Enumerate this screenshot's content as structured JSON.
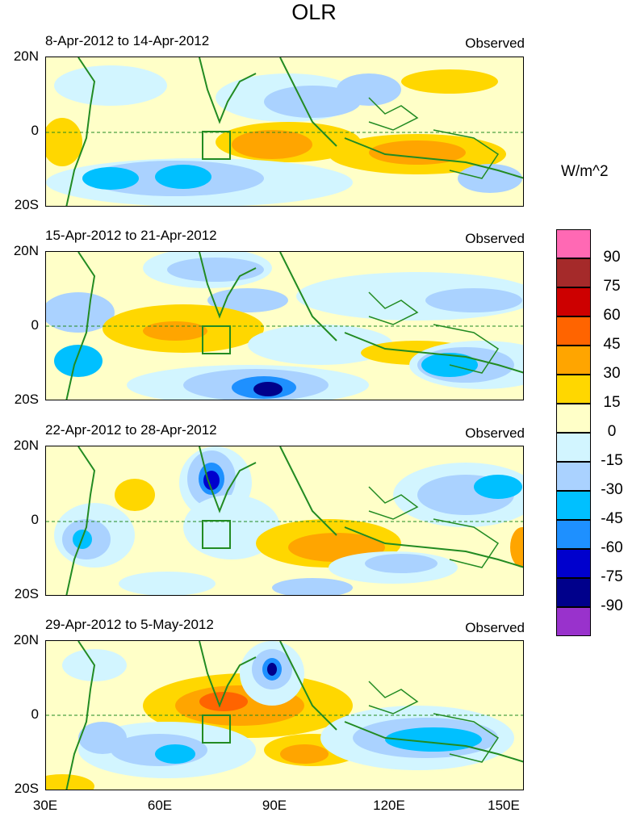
{
  "figure": {
    "title": "OLR",
    "units_label": "W/m^2",
    "panels": [
      {
        "period": "8-Apr-2012 to 14-Apr-2012",
        "label": "Observed"
      },
      {
        "period": "15-Apr-2012 to 21-Apr-2012",
        "label": "Observed"
      },
      {
        "period": "22-Apr-2012 to 28-Apr-2012",
        "label": "Observed"
      },
      {
        "period": "29-Apr-2012 to 5-May-2012",
        "label": "Observed"
      }
    ],
    "lat_labels": [
      "20N",
      "0",
      "20S"
    ],
    "lon_labels": [
      "30E",
      "60E",
      "90E",
      "120E",
      "150E"
    ]
  },
  "colorbar": {
    "levels": [
      "90",
      "75",
      "60",
      "45",
      "30",
      "15",
      "0",
      "-15",
      "-30",
      "-45",
      "-60",
      "-75",
      "-90"
    ],
    "colors": [
      "#ff69b4",
      "#a52a2a",
      "#cd0000",
      "#ff6400",
      "#ffa500",
      "#ffd700",
      "#ffffc8",
      "#d2f5ff",
      "#aad2ff",
      "#00c0ff",
      "#1e90ff",
      "#0000cd",
      "#00008b",
      "#9932cc"
    ]
  }
}
